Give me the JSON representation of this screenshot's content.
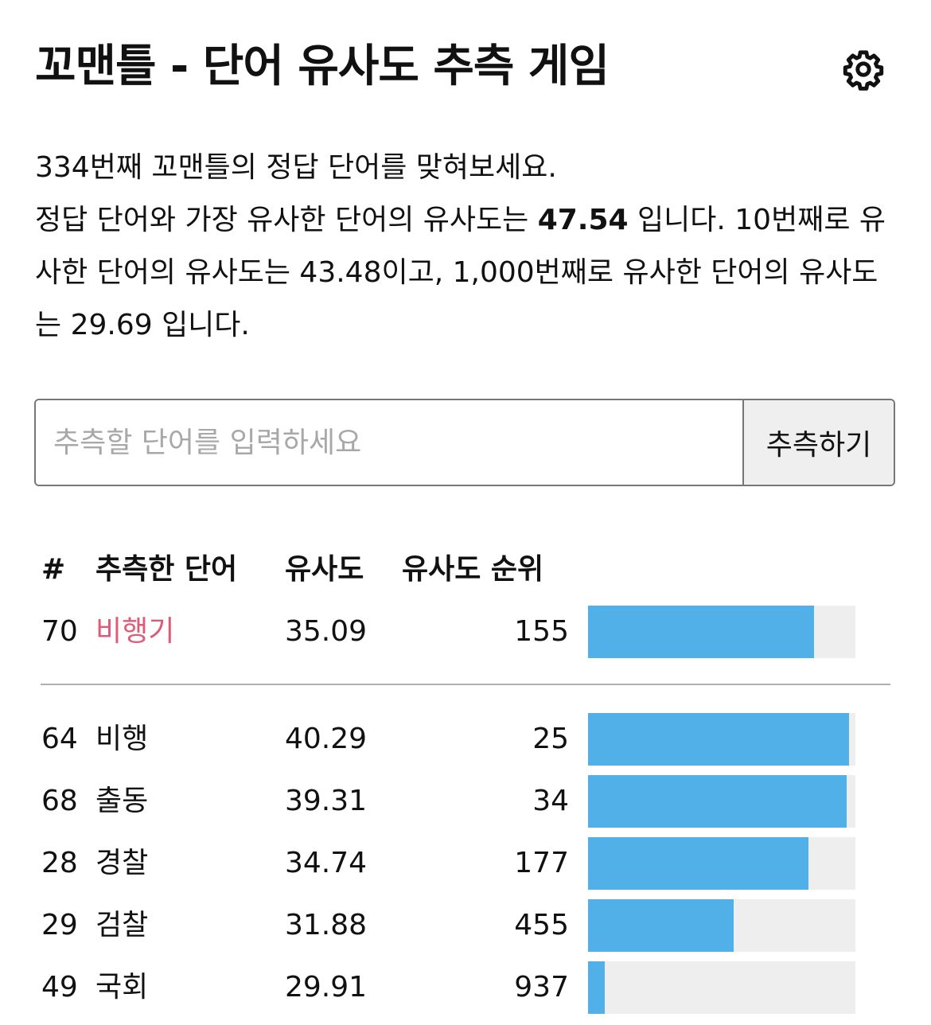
{
  "header": {
    "title": "꼬맨틀 - 단어 유사도 추측 게임",
    "settings_icon": "gear-icon"
  },
  "description": {
    "line1": "334번째 꼬맨틀의 정답 단어를 맞혀보세요.",
    "line2_pre": "정답 단어와 가장 유사한 단어의 유사도는 ",
    "top_similarity": "47.54",
    "line2_post": " 입니다. 10번째로 유사한 단어의 유사도는 43.48이고, 1,000번째로 유사한 단어의 유사도는 29.69 입니다."
  },
  "guess_form": {
    "placeholder": "추측할 단어를 입력하세요",
    "value": "",
    "button_label": "추측하기"
  },
  "table": {
    "headers": {
      "num": "#",
      "word": "추측한 단어",
      "similarity": "유사도",
      "rank": "유사도 순위"
    },
    "current": {
      "num": "70",
      "word": "비행기",
      "similarity": "35.09",
      "rank": "155",
      "progress": 0.845
    },
    "rows": [
      {
        "num": "64",
        "word": "비행",
        "similarity": "40.29",
        "rank": "25",
        "progress": 0.975
      },
      {
        "num": "68",
        "word": "출동",
        "similarity": "39.31",
        "rank": "34",
        "progress": 0.966
      },
      {
        "num": "28",
        "word": "경찰",
        "similarity": "34.74",
        "rank": "177",
        "progress": 0.823
      },
      {
        "num": "29",
        "word": "검찰",
        "similarity": "31.88",
        "rank": "455",
        "progress": 0.545
      },
      {
        "num": "49",
        "word": "국회",
        "similarity": "29.91",
        "rank": "937",
        "progress": 0.063
      }
    ]
  },
  "colors": {
    "accent_bar": "#51b0e8",
    "bar_track": "#eeeeee",
    "current_word": "#e05a78"
  }
}
